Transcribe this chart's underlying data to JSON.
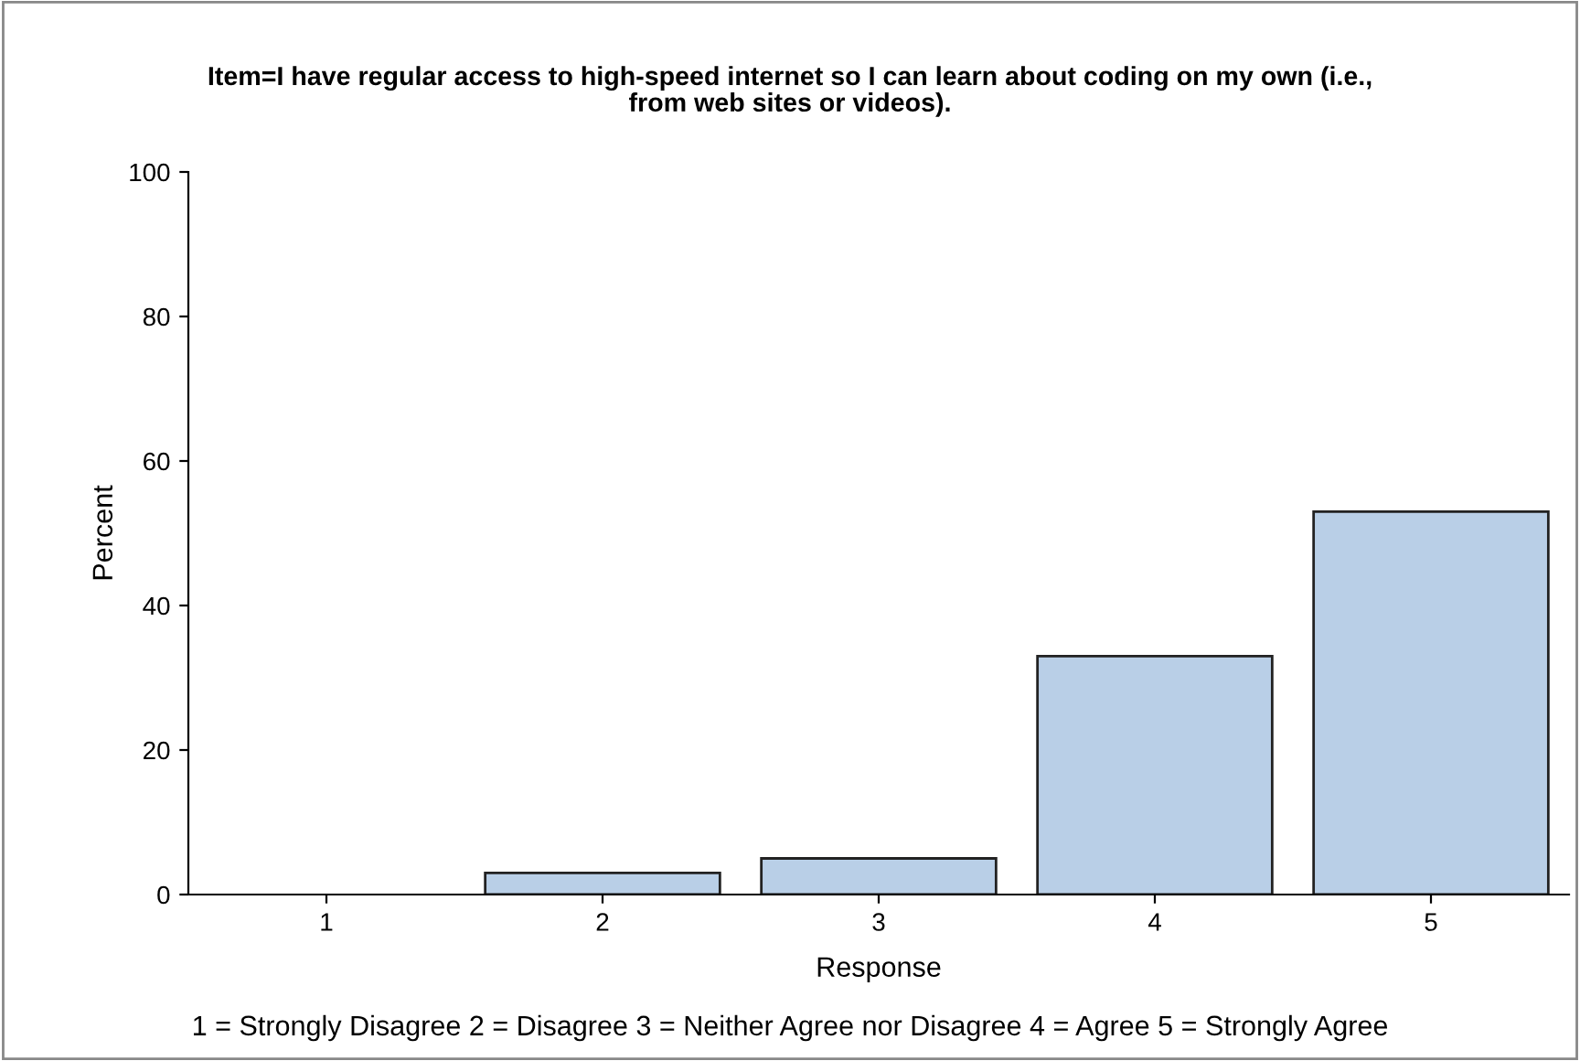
{
  "chart_data": {
    "type": "bar",
    "title": "Item=I have regular access to high-speed internet so I can learn about coding on my own (i.e.,\nfrom web sites or videos).",
    "xlabel": "Response",
    "ylabel": "Percent",
    "categories": [
      "1",
      "2",
      "3",
      "4",
      "5"
    ],
    "values": [
      0,
      3,
      5,
      33,
      53
    ],
    "color": "#b9cfe7",
    "ylim": [
      0,
      100
    ],
    "yticks": [
      0,
      20,
      40,
      60,
      80,
      100
    ],
    "grid": false,
    "legend": false,
    "annotations": [
      "1 = Strongly Disagree 2 = Disagree 3 = Neither Agree nor Disagree 4 = Agree 5 = Strongly Agree"
    ]
  }
}
